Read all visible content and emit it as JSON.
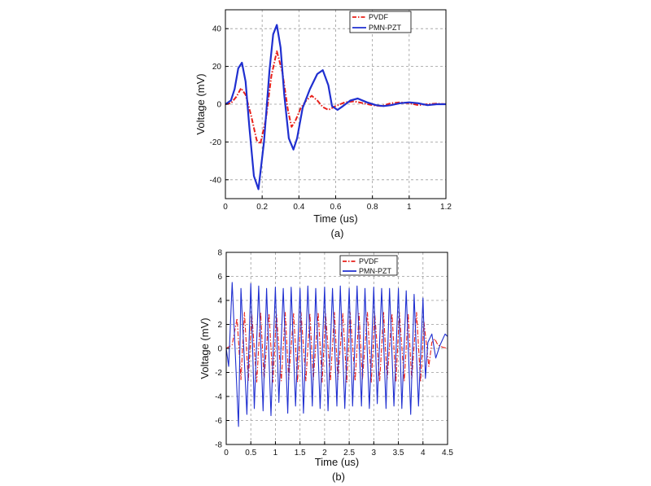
{
  "colors": {
    "pvdf": "#e8201a",
    "pmnpzt": "#1f2fd0",
    "grid": "#9a9a9a",
    "axis": "#000000"
  },
  "chart_data": [
    {
      "type": "line",
      "caption": "(a)",
      "xlabel": "Time (us)",
      "ylabel": "Voltage (mV)",
      "xlim": [
        0,
        1.2
      ],
      "ylim": [
        -50,
        50
      ],
      "xticks": [
        0,
        0.2,
        0.4,
        0.6,
        0.8,
        1,
        1.2
      ],
      "xtick_labels": [
        "0",
        "0.2",
        "0.4",
        "0.6",
        "0.8",
        "1",
        "1.2"
      ],
      "yticks": [
        -40,
        -20,
        0,
        20,
        40
      ],
      "ytick_labels": [
        "-40",
        "-20",
        "0",
        "20",
        "40"
      ],
      "grid": true,
      "legend_position": "top-right",
      "series": [
        {
          "name": "PVDF",
          "style": "dash-dot",
          "x": [
            0,
            0.03,
            0.06,
            0.085,
            0.11,
            0.14,
            0.17,
            0.19,
            0.22,
            0.25,
            0.28,
            0.31,
            0.34,
            0.36,
            0.38,
            0.41,
            0.44,
            0.47,
            0.5,
            0.53,
            0.56,
            0.6,
            0.65,
            0.7,
            0.75,
            0.8,
            0.85,
            0.9,
            0.95,
            1.0,
            1.05,
            1.1,
            1.15,
            1.2
          ],
          "y": [
            0,
            0.5,
            4,
            8.5,
            5,
            -6,
            -19,
            -21,
            -8,
            15,
            28,
            17,
            -3,
            -12,
            -9,
            -2,
            2,
            4.5,
            2,
            -1.5,
            -3,
            -1,
            1,
            1.5,
            0.5,
            -0.5,
            -1,
            0.5,
            1,
            0.5,
            -0.5,
            0,
            0.3,
            0
          ]
        },
        {
          "name": "PMN-PZT",
          "style": "solid",
          "x": [
            0,
            0.03,
            0.05,
            0.07,
            0.09,
            0.11,
            0.13,
            0.155,
            0.18,
            0.21,
            0.24,
            0.26,
            0.28,
            0.3,
            0.32,
            0.345,
            0.37,
            0.39,
            0.42,
            0.46,
            0.5,
            0.53,
            0.56,
            0.58,
            0.61,
            0.64,
            0.68,
            0.72,
            0.77,
            0.82,
            0.86,
            0.9,
            0.95,
            1.0,
            1.05,
            1.1,
            1.15,
            1.2
          ],
          "y": [
            0,
            2,
            8,
            19,
            22,
            12,
            -12,
            -38,
            -45,
            -20,
            18,
            37,
            42,
            30,
            5,
            -18,
            -24,
            -18,
            -2,
            8,
            16,
            18,
            10,
            -1,
            -3,
            -1,
            2,
            3,
            1,
            -0.5,
            -1,
            -0.5,
            0.5,
            1,
            0.5,
            -0.5,
            0,
            0
          ]
        }
      ]
    },
    {
      "type": "line",
      "caption": "(b)",
      "xlabel": "Time (us)",
      "ylabel": "Voltage (mV)",
      "xlim": [
        0,
        4.5
      ],
      "ylim": [
        -8,
        8
      ],
      "xticks": [
        0,
        0.5,
        1,
        1.5,
        2,
        2.5,
        3,
        3.5,
        4,
        4.5
      ],
      "xtick_labels": [
        "0",
        "0.5",
        "1",
        "1.5",
        "2",
        "2.5",
        "3",
        "3.5",
        "4",
        "4.5"
      ],
      "yticks": [
        -8,
        -6,
        -4,
        -2,
        0,
        2,
        4,
        6,
        8
      ],
      "ytick_labels": [
        "-8",
        "-6",
        "-4",
        "-2",
        "0",
        "2",
        "4",
        "6",
        "8"
      ],
      "grid": true,
      "legend_position": "top-right",
      "series": [
        {
          "name": "PVDF",
          "style": "dash-dot",
          "x": [
            0,
            0.12,
            0.22,
            0.3,
            0.37,
            0.45,
            0.52,
            0.62,
            0.7,
            0.77,
            0.87,
            0.95,
            1.02,
            1.12,
            1.2,
            1.27,
            1.37,
            1.45,
            1.52,
            1.62,
            1.7,
            1.77,
            1.87,
            1.95,
            2.02,
            2.12,
            2.2,
            2.27,
            2.37,
            2.45,
            2.52,
            2.62,
            2.7,
            2.77,
            2.87,
            2.95,
            3.02,
            3.12,
            3.2,
            3.27,
            3.37,
            3.45,
            3.52,
            3.62,
            3.7,
            3.77,
            3.87,
            3.95,
            4.02,
            4.12,
            4.18,
            4.24,
            4.3,
            4.4,
            4.5
          ],
          "y": [
            0,
            0.3,
            2.5,
            -2.6,
            3.0,
            -2.7,
            2.9,
            -2.8,
            3.0,
            -2.6,
            2.9,
            -2.8,
            2.9,
            -2.7,
            3.0,
            -2.6,
            2.9,
            -2.8,
            3.0,
            -2.7,
            2.9,
            -2.6,
            3.0,
            -2.8,
            2.9,
            -2.7,
            3.0,
            -2.6,
            2.9,
            -2.8,
            3.0,
            -2.7,
            2.9,
            -2.6,
            3.0,
            -2.8,
            2.9,
            -2.7,
            3.0,
            -2.6,
            2.9,
            -2.8,
            3.0,
            -2.7,
            2.9,
            -2.6,
            3.0,
            -2.8,
            2.2,
            -1.5,
            0.5,
            0.8,
            0.3,
            0.1,
            0
          ]
        },
        {
          "name": "PMN-PZT",
          "style": "solid",
          "x": [
            0,
            0.05,
            0.12,
            0.25,
            0.3,
            0.42,
            0.5,
            0.57,
            0.66,
            0.75,
            0.82,
            0.91,
            1.0,
            1.07,
            1.16,
            1.25,
            1.32,
            1.41,
            1.5,
            1.57,
            1.66,
            1.75,
            1.82,
            1.91,
            2.0,
            2.07,
            2.16,
            2.25,
            2.32,
            2.41,
            2.5,
            2.57,
            2.66,
            2.75,
            2.82,
            2.91,
            3.0,
            3.07,
            3.16,
            3.25,
            3.32,
            3.41,
            3.5,
            3.57,
            3.66,
            3.75,
            3.82,
            3.91,
            4.0,
            4.05,
            4.1,
            4.18,
            4.26,
            4.35,
            4.45,
            4.5
          ],
          "y": [
            0,
            -1.5,
            5.5,
            -6.5,
            5.0,
            -5.5,
            5.4,
            -5.0,
            5.2,
            -5.2,
            5.0,
            -5.6,
            5.1,
            -4.5,
            5.0,
            -5.4,
            5.1,
            -4.8,
            5.0,
            -5.4,
            5.2,
            -4.8,
            5.0,
            -5.0,
            5.1,
            -5.2,
            5.0,
            -4.8,
            5.2,
            -5.0,
            5.0,
            -4.8,
            5.2,
            -4.8,
            5.0,
            -5.0,
            5.1,
            -4.6,
            5.0,
            -5.0,
            5.0,
            -4.8,
            5.0,
            -5.0,
            4.8,
            -5.5,
            4.5,
            -4.8,
            4.2,
            -2.5,
            0.5,
            1.2,
            -0.8,
            0.3,
            1.2,
            1.0
          ]
        }
      ]
    }
  ]
}
